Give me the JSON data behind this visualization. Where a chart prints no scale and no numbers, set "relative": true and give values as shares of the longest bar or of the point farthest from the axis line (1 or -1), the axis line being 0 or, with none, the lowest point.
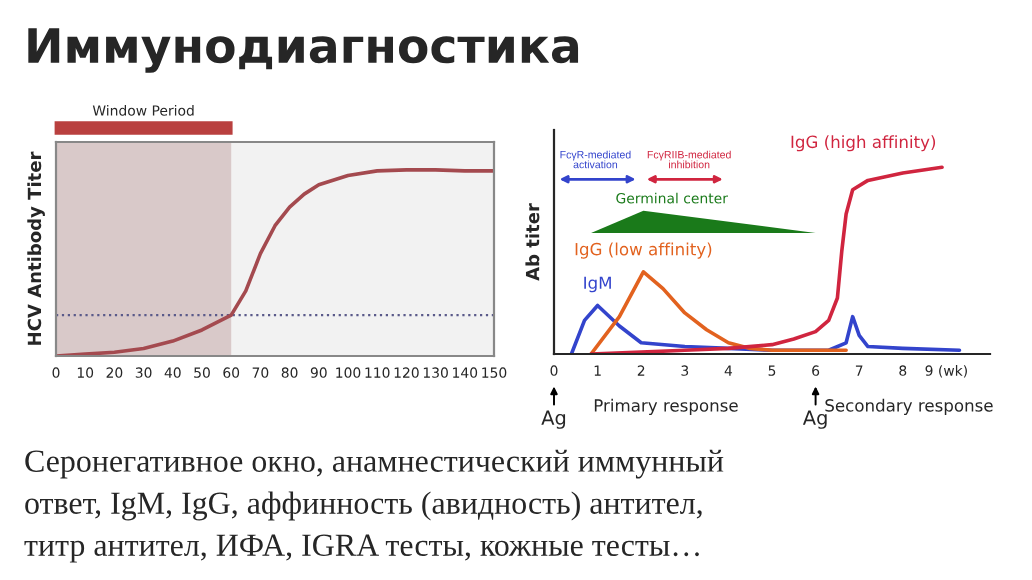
{
  "chart_data": [
    {
      "type": "other",
      "title": "Иммунодиагностика"
    },
    {
      "type": "line",
      "relative": true,
      "ylabel": "HCV Antibody Titer",
      "xlim": [
        0,
        150
      ],
      "xticks": [
        0,
        10,
        20,
        30,
        40,
        50,
        60,
        70,
        80,
        90,
        100,
        110,
        120,
        130,
        140,
        150
      ],
      "legend": false,
      "marker": "none",
      "line_style": "solid",
      "series": [
        {
          "color": "#a44a4f",
          "x": [
            0,
            10,
            20,
            30,
            40,
            50,
            60,
            65,
            70,
            75,
            80,
            85,
            90,
            100,
            110,
            120,
            130,
            140,
            150
          ],
          "values": [
            0,
            0.01,
            0.02,
            0.04,
            0.08,
            0.14,
            0.22,
            0.35,
            0.55,
            0.7,
            0.8,
            0.87,
            0.92,
            0.97,
            0.995,
            1,
            1,
            0.995,
            0.995
          ]
        }
      ],
      "bands": [
        {
          "axis": "x",
          "from": 0,
          "to": 60,
          "label": "Window Period",
          "color": "#d9c9c9"
        }
      ],
      "ref_lines": [
        {
          "axis": "y",
          "value": 0.22,
          "line_style": "dotted",
          "color": "#5a5a8a"
        }
      ]
    },
    {
      "type": "line",
      "relative": true,
      "ylabel": "Ab titer",
      "xlim": [
        0,
        10
      ],
      "xticks": [
        0,
        1,
        2,
        3,
        4,
        5,
        6,
        7,
        8,
        {
          "value": 9,
          "label": "9 (wk)"
        }
      ],
      "legend": false,
      "marker": "none",
      "line_style": "solid",
      "series": [
        {
          "name": "IgM",
          "color": "#3344cc",
          "x": [
            0.4,
            0.7,
            1.0,
            1.5,
            2,
            3,
            4,
            5,
            6.3,
            6.7,
            6.85,
            7.0,
            7.2,
            8,
            9.3
          ],
          "values": [
            0,
            0.18,
            0.26,
            0.15,
            0.06,
            0.04,
            0.03,
            0.02,
            0.02,
            0.06,
            0.2,
            0.1,
            0.04,
            0.03,
            0.02
          ]
        },
        {
          "name": "IgG (low affinity)",
          "color": "#e2621f",
          "x": [
            0.85,
            1.5,
            2.05,
            2.5,
            3,
            3.5,
            4,
            4.5,
            5,
            6,
            6.7
          ],
          "values": [
            0,
            0.2,
            0.44,
            0.35,
            0.22,
            0.13,
            0.06,
            0.03,
            0.02,
            0.02,
            0.02
          ]
        },
        {
          "name": "IgG (high affinity)",
          "color": "#d0253f",
          "x": [
            0.85,
            2,
            3,
            4,
            5,
            5.5,
            6,
            6.3,
            6.5,
            6.6,
            6.7,
            6.85,
            7.2,
            8,
            8.9
          ],
          "values": [
            0,
            0.01,
            0.02,
            0.03,
            0.05,
            0.08,
            0.12,
            0.18,
            0.3,
            0.55,
            0.75,
            0.88,
            0.93,
            0.97,
            1
          ]
        }
      ],
      "annotations": [
        "FcγR-mediated\nactivation",
        "FcγRIIB-mediated\ninhibition",
        "Germinal center",
        "Ag",
        "Ag",
        "Primary response",
        "Secondary response"
      ]
    },
    {
      "type": "other",
      "annotations": [
        "Серонегативное окно, анамнестический иммунный",
        "ответ, IgM, IgG, аффинность (авидность) антител,",
        "титр антител, ИФА, IGRA тесты, кожные тесты…"
      ]
    }
  ]
}
